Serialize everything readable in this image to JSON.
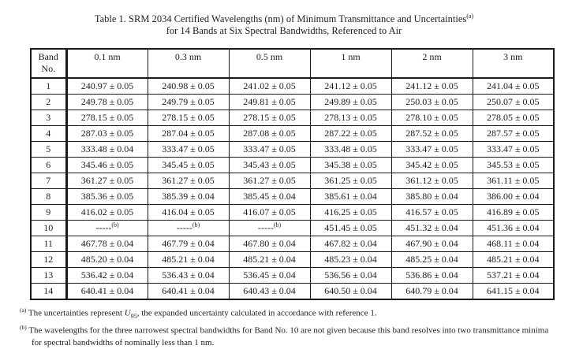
{
  "page": {
    "title_line1": "Table 1.  SRM 2034 Certified Wavelengths (nm) of Minimum Transmittance and Uncertainties",
    "title_sup": "(a)",
    "title_line2": "for 14 Bands at Six Spectral Bandwidths, Referenced to Air"
  },
  "table": {
    "band_header_line1": "Band",
    "band_header_line2": "No.",
    "bandwidths": [
      "0.1 nm",
      "0.3 nm",
      "0.5 nm",
      "1 nm",
      "2 nm",
      "3 nm"
    ],
    "rows": [
      {
        "band": "1",
        "values": [
          "240.97 ± 0.05",
          "240.98 ± 0.05",
          "241.02 ± 0.05",
          "241.12 ± 0.05",
          "241.12 ± 0.05",
          "241.04 ± 0.05"
        ]
      },
      {
        "band": "2",
        "values": [
          "249.78 ± 0.05",
          "249.79 ± 0.05",
          "249.81 ± 0.05",
          "249.89 ± 0.05",
          "250.03 ± 0.05",
          "250.07 ± 0.05"
        ]
      },
      {
        "band": "3",
        "values": [
          "278.15 ± 0.05",
          "278.15 ± 0.05",
          "278.15 ± 0.05",
          "278.13 ± 0.05",
          "278.10 ± 0.05",
          "278.05 ± 0.05"
        ]
      },
      {
        "band": "4",
        "values": [
          "287.03 ± 0.05",
          "287.04 ± 0.05",
          "287.08 ± 0.05",
          "287.22 ± 0.05",
          "287.52 ± 0.05",
          "287.57 ± 0.05"
        ]
      },
      {
        "band": "5",
        "values": [
          "333.48 ± 0.04",
          "333.47 ± 0.05",
          "333.47 ± 0.05",
          "333.48 ± 0.05",
          "333.47 ± 0.05",
          "333.47 ± 0.05"
        ]
      },
      {
        "band": "6",
        "values": [
          "345.46 ± 0.05",
          "345.45 ± 0.05",
          "345.43 ± 0.05",
          "345.38 ± 0.05",
          "345.42 ± 0.05",
          "345.53 ± 0.05"
        ]
      },
      {
        "band": "7",
        "values": [
          "361.27 ± 0.05",
          "361.27 ± 0.05",
          "361.27 ± 0.05",
          "361.25 ± 0.05",
          "361.12 ± 0.05",
          "361.11 ± 0.05"
        ]
      },
      {
        "band": "8",
        "values": [
          "385.36 ± 0.05",
          "385.39 ± 0.04",
          "385.45 ± 0.04",
          "385.61 ± 0.04",
          "385.80 ± 0.04",
          "386.00 ± 0.04"
        ]
      },
      {
        "band": "9",
        "values": [
          "416.02 ± 0.05",
          "416.04 ± 0.05",
          "416.07 ± 0.05",
          "416.25 ± 0.05",
          "416.57 ± 0.05",
          "416.89 ± 0.05"
        ]
      },
      {
        "band": "10",
        "values": [
          "-----^(b)",
          "-----^(b)",
          "-----^(b)",
          "451.45 ± 0.05",
          "451.32 ± 0.04",
          "451.36 ± 0.04"
        ]
      },
      {
        "band": "11",
        "values": [
          "467.78 ± 0.04",
          "467.79 ± 0.04",
          "467.80 ± 0.04",
          "467.82 ± 0.04",
          "467.90 ± 0.04",
          "468.11 ± 0.04"
        ]
      },
      {
        "band": "12",
        "values": [
          "485.20 ± 0.04",
          "485.21 ± 0.04",
          "485.21 ± 0.04",
          "485.23 ± 0.04",
          "485.25 ± 0.04",
          "485.21 ± 0.04"
        ]
      },
      {
        "band": "13",
        "values": [
          "536.42 ± 0.04",
          "536.43 ± 0.04",
          "536.45 ± 0.04",
          "536.56 ± 0.04",
          "536.86 ± 0.04",
          "537.21 ± 0.04"
        ]
      },
      {
        "band": "14",
        "values": [
          "640.41 ± 0.04",
          "640.41 ± 0.04",
          "640.43 ± 0.04",
          "640.50 ± 0.04",
          "640.79 ± 0.04",
          "641.15 ± 0.04"
        ]
      }
    ]
  },
  "footnotes": {
    "a_marker": "(a)",
    "a_pre": "The uncertainties represent ",
    "a_symbol": "U",
    "a_sub": "95",
    "a_post": ", the expanded uncertainty calculated in accordance with reference 1.",
    "b_marker": "(b)",
    "b_text": "The wavelengths for the three narrowest spectral bandwidths for Band No. 10 are not given because this band resolves into two transmittance minima for spectral bandwidths of nominally less than 1 nm."
  }
}
